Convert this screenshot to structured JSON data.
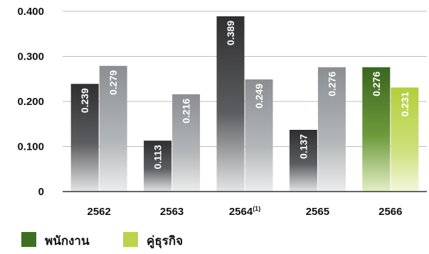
{
  "chart_data": {
    "type": "bar",
    "categories": [
      "2562",
      "2563",
      "2564",
      "2565",
      "2566"
    ],
    "category_notes": [
      "",
      "",
      "(1)",
      "",
      ""
    ],
    "series": [
      {
        "name": "พนักงาน",
        "values": [
          0.239,
          0.113,
          0.389,
          0.137,
          0.276
        ]
      },
      {
        "name": "คู่ธุรกิจ",
        "values": [
          0.279,
          0.216,
          0.249,
          0.276,
          0.231
        ]
      }
    ],
    "value_labels": [
      [
        "0.239",
        "0.113",
        "0.389",
        "0.137",
        "0.276"
      ],
      [
        "0.279",
        "0.216",
        "0.249",
        "0.276",
        "0.231"
      ]
    ],
    "y_ticks": [
      "0",
      "0.100",
      "0.200",
      "0.300",
      "0.400"
    ],
    "ylim": [
      0,
      0.4
    ],
    "grid": true,
    "legend_position": "bottom-left",
    "highlight_category": "2566",
    "colors": {
      "series1": "#4d4d4f",
      "series2": "#a3a6a9",
      "highlight_series1": "#3f6f23",
      "highlight_series2": "#b9d44a",
      "gridline": "#bdbdbd",
      "axis": "#333333"
    }
  }
}
